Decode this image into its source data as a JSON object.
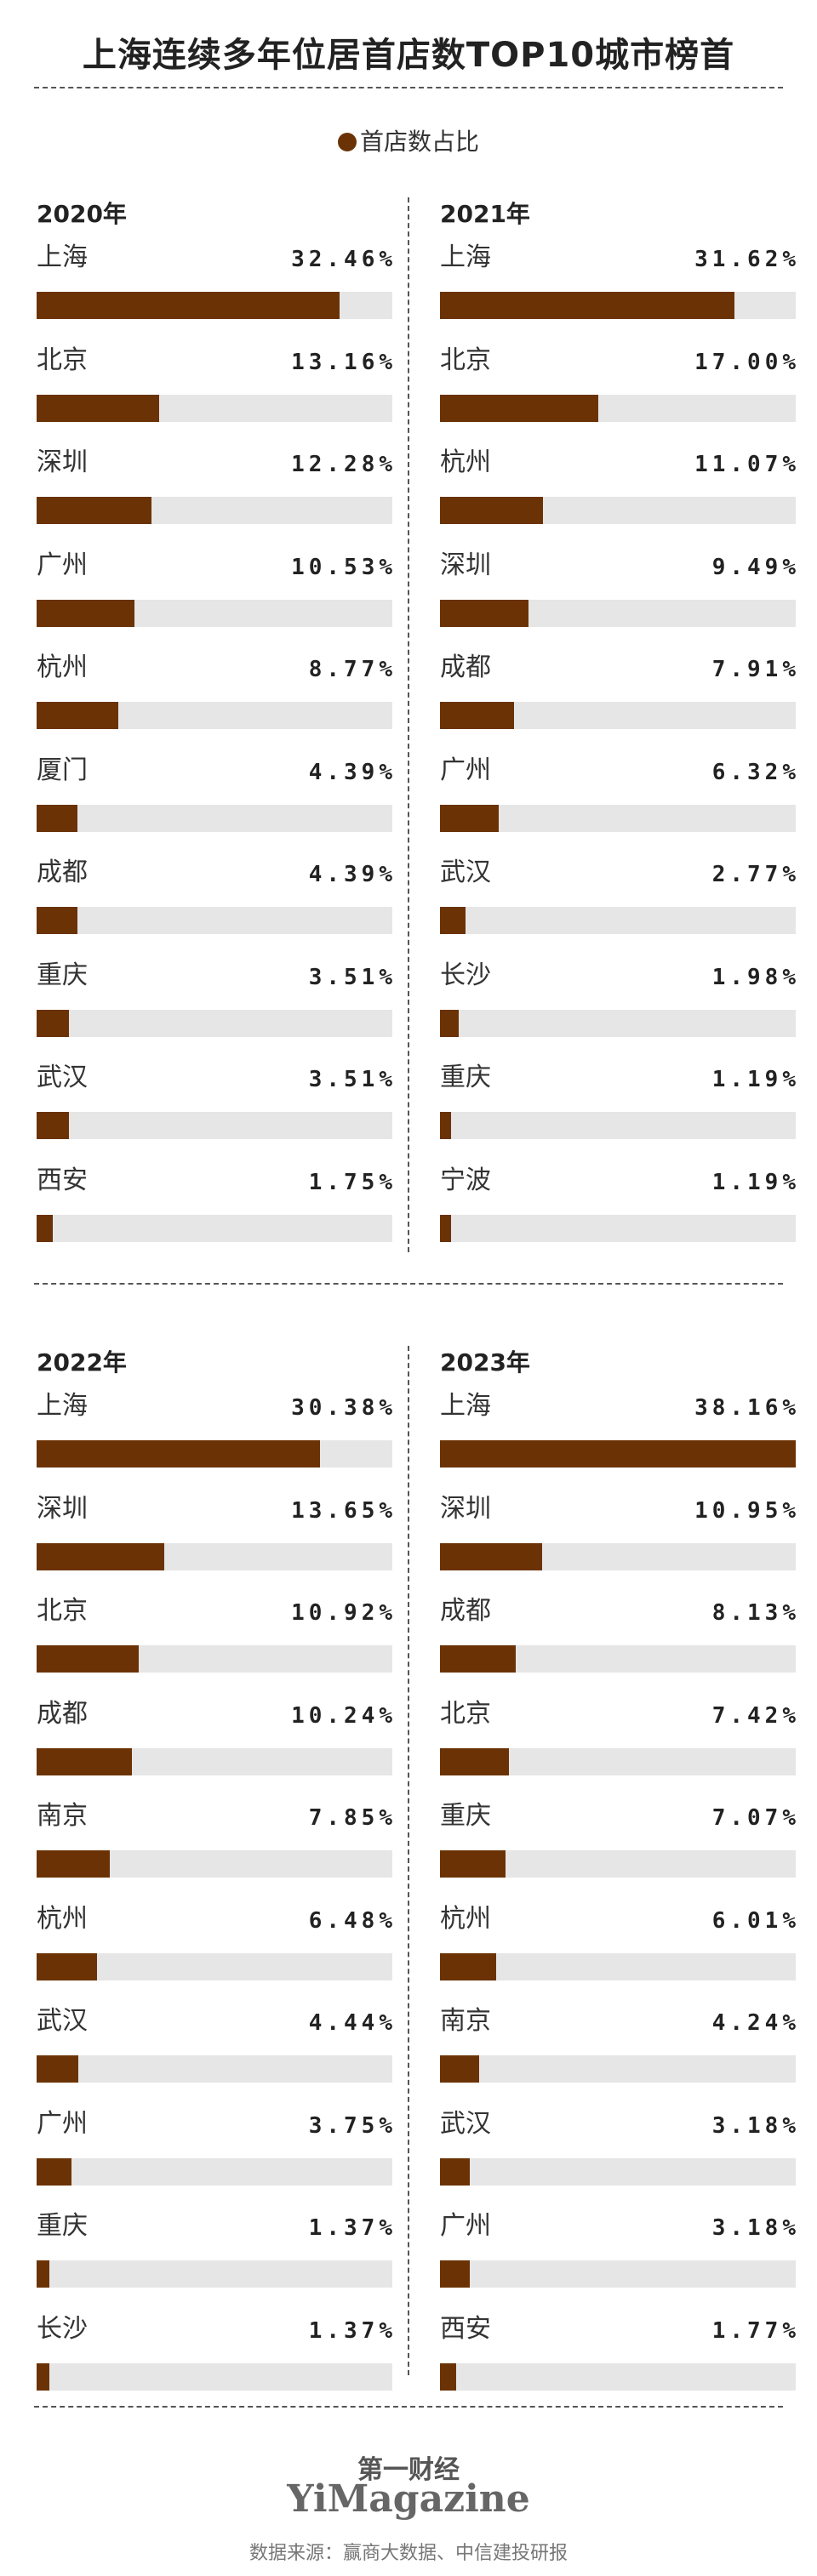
{
  "title": "上海连续多年位居首店数TOP10城市榜首",
  "legend": "首店数占比",
  "source": "数据来源：赢商大数据、中信建投研报",
  "brand": {
    "cn": "第一财经",
    "en": "YiMagazine"
  },
  "colors": {
    "bar": "#6b3305",
    "track": "#e6e6e6"
  },
  "chart_data": [
    {
      "type": "bar",
      "title": "2020年",
      "xlim": [
        0,
        38.16
      ],
      "categories": [
        "上海",
        "北京",
        "深圳",
        "广州",
        "杭州",
        "厦门",
        "成都",
        "重庆",
        "武汉",
        "西安"
      ],
      "values": [
        32.46,
        13.16,
        12.28,
        10.53,
        8.77,
        4.39,
        4.39,
        3.51,
        3.51,
        1.75
      ],
      "labels": [
        "32.46%",
        "13.16%",
        "12.28%",
        "10.53%",
        "8.77%",
        "4.39%",
        "4.39%",
        "3.51%",
        "3.51%",
        "1.75%"
      ]
    },
    {
      "type": "bar",
      "title": "2021年",
      "xlim": [
        0,
        38.16
      ],
      "categories": [
        "上海",
        "北京",
        "杭州",
        "深圳",
        "成都",
        "广州",
        "武汉",
        "长沙",
        "重庆",
        "宁波"
      ],
      "values": [
        31.62,
        17.0,
        11.07,
        9.49,
        7.91,
        6.32,
        2.77,
        1.98,
        1.19,
        1.19
      ],
      "labels": [
        "31.62%",
        "17.00%",
        "11.07%",
        "9.49%",
        "7.91%",
        "6.32%",
        "2.77%",
        "1.98%",
        "1.19%",
        "1.19%"
      ]
    },
    {
      "type": "bar",
      "title": "2022年",
      "xlim": [
        0,
        38.16
      ],
      "categories": [
        "上海",
        "深圳",
        "北京",
        "成都",
        "南京",
        "杭州",
        "武汉",
        "广州",
        "重庆",
        "长沙"
      ],
      "values": [
        30.38,
        13.65,
        10.92,
        10.24,
        7.85,
        6.48,
        4.44,
        3.75,
        1.37,
        1.37
      ],
      "labels": [
        "30.38%",
        "13.65%",
        "10.92%",
        "10.24%",
        "7.85%",
        "6.48%",
        "4.44%",
        "3.75%",
        "1.37%",
        "1.37%"
      ]
    },
    {
      "type": "bar",
      "title": "2023年",
      "xlim": [
        0,
        38.16
      ],
      "categories": [
        "上海",
        "深圳",
        "成都",
        "北京",
        "重庆",
        "杭州",
        "南京",
        "武汉",
        "广州",
        "西安"
      ],
      "values": [
        38.16,
        10.95,
        8.13,
        7.42,
        7.07,
        6.01,
        4.24,
        3.18,
        3.18,
        1.77
      ],
      "labels": [
        "38.16%",
        "10.95%",
        "8.13%",
        "7.42%",
        "7.07%",
        "6.01%",
        "4.24%",
        "3.18%",
        "3.18%",
        "1.77%"
      ]
    }
  ]
}
